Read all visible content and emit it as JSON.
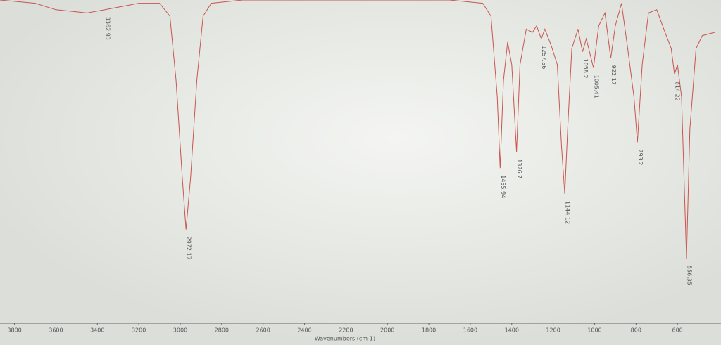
{
  "chart_data": {
    "type": "line",
    "x_label": "Wavenumbers (cm-1)",
    "x": [
      3870,
      3700,
      3600,
      3450,
      3362.93,
      3200,
      3100,
      3050,
      3020,
      2990,
      2972.17,
      2950,
      2920,
      2890,
      2850,
      2700,
      2500,
      1700,
      1540,
      1500,
      1470,
      1455.94,
      1440,
      1420,
      1400,
      1376.7,
      1360,
      1330,
      1300,
      1280,
      1257.56,
      1240,
      1210,
      1180,
      1160,
      1144.12,
      1130,
      1110,
      1080,
      1058.2,
      1040,
      1005.41,
      980,
      950,
      922.17,
      900,
      870,
      840,
      810,
      793.2,
      770,
      740,
      700,
      660,
      630,
      614.22,
      600,
      580,
      556.35,
      540,
      510,
      480,
      420
    ],
    "series": [
      {
        "color": "#c9554f",
        "values": [
          100,
          99,
          97,
          96,
          97,
          99,
          99,
          95,
          75,
          45,
          29,
          45,
          75,
          95,
          99,
          100,
          100,
          100,
          99,
          95,
          70,
          48,
          75,
          87,
          80,
          53,
          80,
          91,
          90,
          92,
          88,
          91,
          86,
          80,
          55,
          40,
          60,
          85,
          91,
          84,
          88,
          79,
          92,
          96,
          82,
          92,
          99,
          85,
          70,
          56,
          80,
          96,
          97,
          90,
          85,
          77,
          80,
          70,
          20,
          60,
          85,
          89,
          90
        ]
      }
    ],
    "peaks": [
      3362.93,
      2972.17,
      1455.94,
      1376.7,
      1257.56,
      1144.12,
      1058.2,
      1005.41,
      922.17,
      793.2,
      614.22,
      556.35
    ],
    "xlim": [
      3870,
      400
    ],
    "ylim": [
      0,
      100
    ],
    "xticks": [
      3800,
      3600,
      3400,
      3200,
      3000,
      2800,
      2600,
      2400,
      2200,
      2000,
      1800,
      1600,
      1400,
      1200,
      1000,
      800,
      600
    ]
  }
}
